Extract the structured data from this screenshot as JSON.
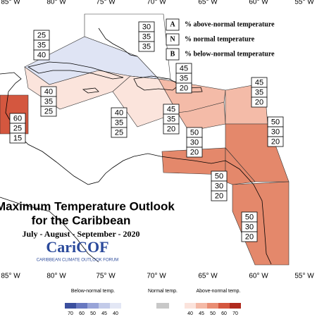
{
  "longitudes_top": [
    "85° W",
    "80° W",
    "75° W",
    "70° W",
    "65° W",
    "60° W",
    "55° W"
  ],
  "longitudes_bottom": [
    "85° W",
    "80° W",
    "75° W",
    "70° W",
    "65° W",
    "60° W",
    "55° W"
  ],
  "key": [
    {
      "letter": "A",
      "text": "% above-normal temperature"
    },
    {
      "letter": "N",
      "text": "% normal temperature"
    },
    {
      "letter": "B",
      "text": "% below-normal temperature"
    }
  ],
  "title": "Maximum Temperature Outlook",
  "subtitle": "for the Caribbean",
  "period": "July - August - September - 2020",
  "logo": "CariCOF",
  "logo_caption": "CARIBBEAN CLIMATE OUTLOOK FORUM",
  "regions": [
    {
      "values": [
        30,
        35,
        35
      ],
      "color": "#ffffff"
    },
    {
      "values": [
        25,
        35,
        40
      ],
      "color": "#dfe4f4"
    },
    {
      "values": [
        40,
        35,
        25
      ],
      "color": "#fbe4dc"
    },
    {
      "values": [
        60,
        25,
        15
      ],
      "color": "#d4573f"
    },
    {
      "values": [
        40,
        35,
        25
      ],
      "color": "#fbe4dc"
    },
    {
      "values": [
        45,
        35,
        20
      ],
      "color": "#f4bba8"
    },
    {
      "values": [
        45,
        35,
        20
      ],
      "color": "#f4bba8"
    },
    {
      "values": [
        45,
        35,
        20
      ],
      "color": "#f4bba8"
    },
    {
      "values": [
        50,
        30,
        20
      ],
      "color": "#e4886b"
    },
    {
      "values": [
        50,
        30,
        20
      ],
      "color": "#e4886b"
    },
    {
      "values": [
        50,
        30,
        20
      ],
      "color": "#e4886b"
    },
    {
      "values": [
        50,
        30,
        20
      ],
      "color": "#e4886b"
    }
  ],
  "colorbar": {
    "below_label": "Below-normal temp.",
    "below_ticks": [
      70,
      60,
      50,
      45,
      40
    ],
    "below_colors": [
      "#3b4f9e",
      "#6878c0",
      "#98a4d8",
      "#c3cbe9",
      "#e3e7f5"
    ],
    "normal_label": "Normal temp.",
    "normal_color": "#c8c8c8",
    "above_label": "Above-normal temp.",
    "above_ticks": [
      40,
      45,
      50,
      60,
      70
    ],
    "above_colors": [
      "#fbe3dc",
      "#f4b9a6",
      "#e98d73",
      "#d4573f",
      "#b02a1e"
    ]
  }
}
